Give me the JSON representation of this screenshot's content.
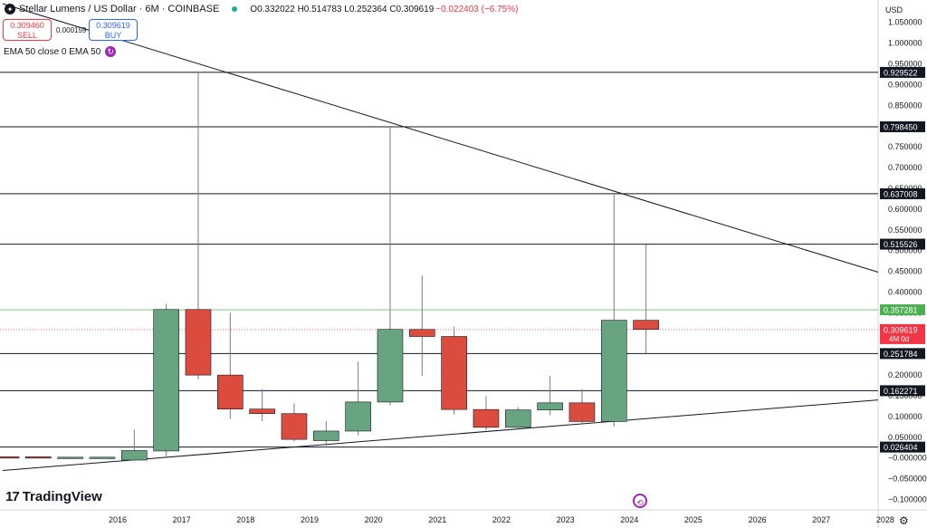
{
  "header": {
    "title": "Stellar Lumens / US Dollar · 6M · COINBASE",
    "logo_glyph": "✦",
    "ohlc": "O0.332022 H0.514783 L0.252364 C0.309619",
    "change": "−0.022403 (−6.75%)"
  },
  "trade": {
    "sell_price": "0.309460",
    "sell_label": "SELL",
    "spread": "0.000159",
    "buy_price": "0.309619",
    "buy_label": "BUY"
  },
  "indicator": {
    "label": "EMA 50 close 0 EMA 50",
    "icon": "sync-icon"
  },
  "currency": "USD",
  "branding": {
    "mark": "17",
    "name": "TradingView"
  },
  "colors": {
    "up": "#68a47f",
    "down": "#db4c3f",
    "accent": "#9c27b0",
    "green_line": "#4caf50",
    "red_line": "#f23645"
  },
  "chart_data": {
    "type": "candlestick",
    "title": "Stellar Lumens / US Dollar · 6M · COINBASE",
    "ylim": [
      -0.125,
      1.104
    ],
    "y_ticks": [
      "1.050000",
      "1.000000",
      "0.950000",
      "0.900000",
      "0.850000",
      "0.800000",
      "0.750000",
      "0.700000",
      "0.650000",
      "0.600000",
      "0.550000",
      "0.500000",
      "0.450000",
      "0.400000",
      "0.350000",
      "0.300000",
      "0.250000",
      "0.200000",
      "0.150000",
      "0.100000",
      "0.050000",
      "−0.000000",
      "−0.050000",
      "−0.100000"
    ],
    "x_labels": [
      "2016",
      "2017",
      "2018",
      "2019",
      "2020",
      "2021",
      "2022",
      "2023",
      "2024",
      "2025",
      "2026",
      "2027",
      "2028"
    ],
    "candles": [
      {
        "t": "2015-H1",
        "o": 0.003,
        "h": 0.003,
        "l": 0.001,
        "c": 0.001
      },
      {
        "t": "2015-H2",
        "o": 0.003,
        "h": 0.003,
        "l": 0.001,
        "c": 0.002
      },
      {
        "t": "2016-H1",
        "o": 0.002,
        "h": 0.003,
        "l": 0.001,
        "c": 0.002
      },
      {
        "t": "2016-H2",
        "o": 0.002,
        "h": 0.003,
        "l": 0.001,
        "c": 0.002
      },
      {
        "t": "2017-H1",
        "o": -0.005,
        "h": 0.068,
        "l": -0.005,
        "c": 0.018
      },
      {
        "t": "2017-H2",
        "o": 0.017,
        "h": 0.372,
        "l": 0.005,
        "c": 0.358
      },
      {
        "t": "2018-H1",
        "o": 0.358,
        "h": 0.928,
        "l": 0.19,
        "c": 0.2
      },
      {
        "t": "2018-H2",
        "o": 0.2,
        "h": 0.35,
        "l": 0.094,
        "c": 0.118
      },
      {
        "t": "2019-H1",
        "o": 0.118,
        "h": 0.166,
        "l": 0.089,
        "c": 0.107
      },
      {
        "t": "2019-H2",
        "o": 0.107,
        "h": 0.132,
        "l": 0.04,
        "c": 0.045
      },
      {
        "t": "2020-H1",
        "o": 0.042,
        "h": 0.089,
        "l": 0.025,
        "c": 0.065
      },
      {
        "t": "2020-H2",
        "o": 0.065,
        "h": 0.232,
        "l": 0.055,
        "c": 0.135
      },
      {
        "t": "2021-H1",
        "o": 0.135,
        "h": 0.798,
        "l": 0.127,
        "c": 0.31
      },
      {
        "t": "2021-H2",
        "o": 0.31,
        "h": 0.44,
        "l": 0.198,
        "c": 0.293
      },
      {
        "t": "2022-H1",
        "o": 0.293,
        "h": 0.317,
        "l": 0.105,
        "c": 0.117
      },
      {
        "t": "2022-H2",
        "o": 0.117,
        "h": 0.149,
        "l": 0.067,
        "c": 0.074
      },
      {
        "t": "2023-H1",
        "o": 0.074,
        "h": 0.123,
        "l": 0.072,
        "c": 0.116
      },
      {
        "t": "2023-H2",
        "o": 0.116,
        "h": 0.198,
        "l": 0.103,
        "c": 0.133
      },
      {
        "t": "2024-H1",
        "o": 0.133,
        "h": 0.166,
        "l": 0.085,
        "c": 0.088
      },
      {
        "t": "2024-H2",
        "o": 0.088,
        "h": 0.637,
        "l": 0.076,
        "c": 0.332
      },
      {
        "t": "2025-H1",
        "o": 0.332,
        "h": 0.515,
        "l": 0.252,
        "c": 0.31
      }
    ],
    "horizontal_levels": [
      {
        "label": "0.929522",
        "value": 0.929522
      },
      {
        "label": "0.798450",
        "value": 0.79845
      },
      {
        "label": "0.637008",
        "value": 0.637008
      },
      {
        "label": "0.515526",
        "value": 0.515526
      },
      {
        "label": "0.251784",
        "value": 0.251784
      },
      {
        "label": "0.162271",
        "value": 0.162271
      },
      {
        "label": "0.026404",
        "value": 0.026404
      }
    ],
    "ema_level": {
      "label": "0.357281",
      "value": 0.357281
    },
    "last_price": {
      "label": "0.309619",
      "value": 0.309619,
      "sublabel": "4M 0d"
    },
    "trendlines": [
      {
        "name": "resistance",
        "from": {
          "t": "2015-H1",
          "v": 1.095
        },
        "to": {
          "t": "2028-H2",
          "v": 0.448
        }
      },
      {
        "name": "support",
        "from": {
          "t": "2015-H1",
          "v": -0.03
        },
        "to": {
          "t": "2028-H2",
          "v": 0.14
        }
      }
    ]
  }
}
